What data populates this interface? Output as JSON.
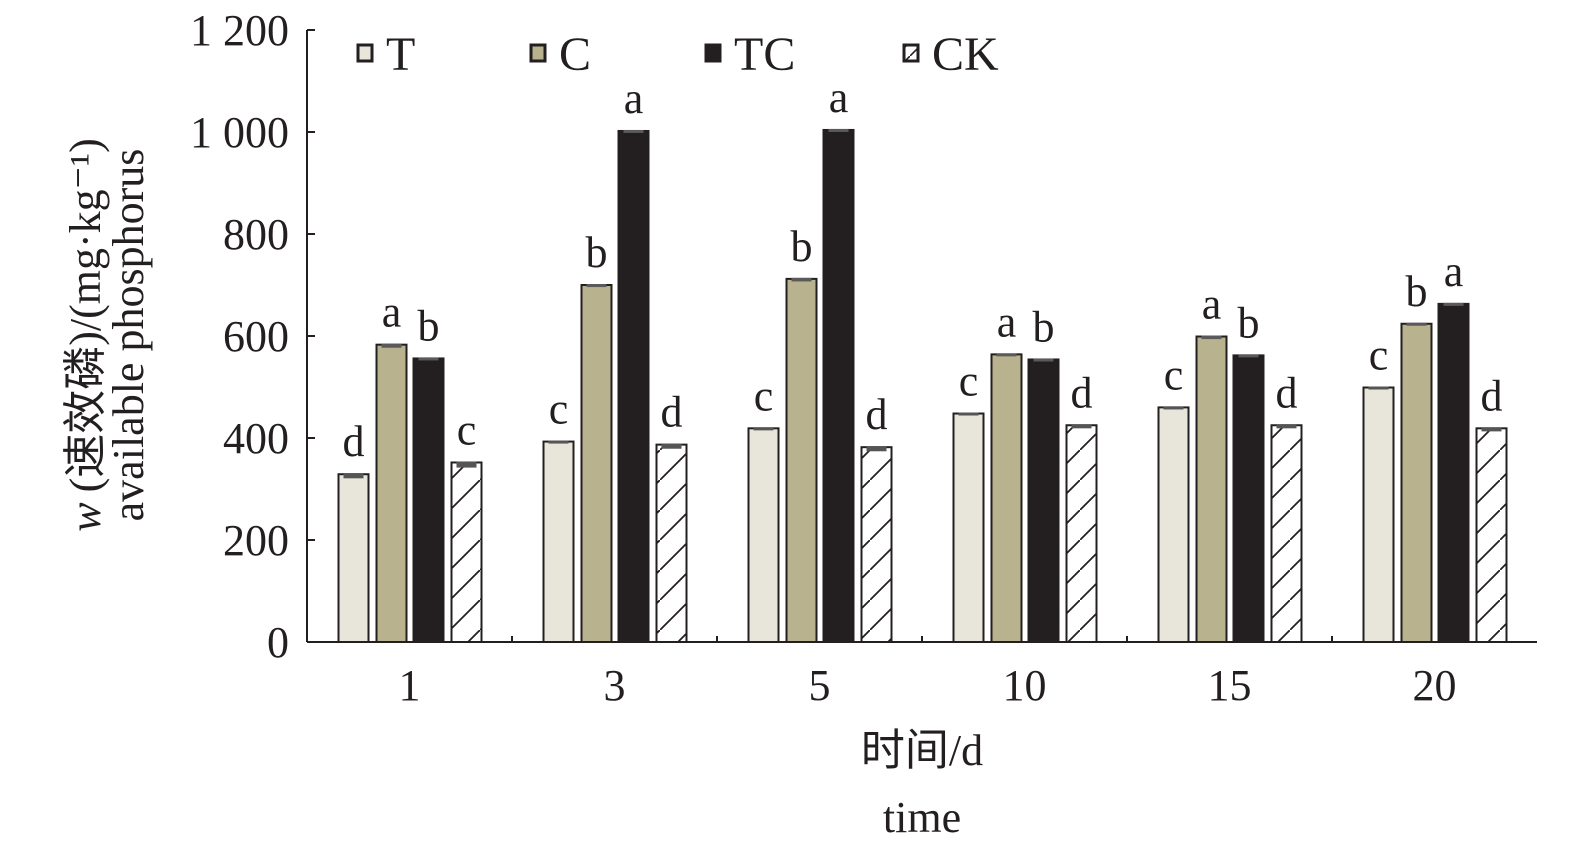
{
  "chart_data": {
    "type": "bar",
    "title": "",
    "xlabel": "时间/d",
    "xlabel_en": "time",
    "ylabel_prefix": "w",
    "ylabel": "(速效磷)/(mg·kg⁻¹)",
    "ylabel_en": "available phosphorus",
    "ylim": [
      0,
      1200
    ],
    "yticks": [
      0,
      200,
      400,
      600,
      800,
      1000,
      1200
    ],
    "ytick_labels": [
      "0",
      "200",
      "400",
      "600",
      "800",
      "1 000",
      "1 200"
    ],
    "categories": [
      "1",
      "3",
      "5",
      "10",
      "15",
      "20"
    ],
    "legend_position": "top",
    "series": [
      {
        "name": "T",
        "color": "#e8e6da",
        "pattern": "solid",
        "values": [
          329,
          393,
          419,
          448,
          460,
          499
        ],
        "errors": [
          10,
          5,
          6,
          5,
          6,
          5
        ],
        "letters": [
          "d",
          "c",
          "c",
          "c",
          "c",
          "c"
        ]
      },
      {
        "name": "C",
        "color": "#b8b28e",
        "pattern": "solid",
        "values": [
          583,
          700,
          712,
          564,
          599,
          624
        ],
        "errors": [
          8,
          6,
          7,
          4,
          7,
          5
        ],
        "letters": [
          "a",
          "b",
          "b",
          "a",
          "a",
          "b"
        ]
      },
      {
        "name": "TC",
        "color": "#231f20",
        "pattern": "solid",
        "values": [
          556,
          1002,
          1004,
          554,
          562,
          663
        ],
        "errors": [
          5,
          4,
          4,
          6,
          5,
          4
        ],
        "letters": [
          "b",
          "a",
          "a",
          "b",
          "b",
          "a"
        ]
      },
      {
        "name": "CK",
        "color": "#ffffff",
        "pattern": "hatch",
        "values": [
          352,
          387,
          382,
          425,
          425,
          419
        ],
        "errors": [
          12,
          10,
          10,
          8,
          8,
          8
        ],
        "letters": [
          "c",
          "d",
          "d",
          "d",
          "d",
          "d"
        ]
      }
    ]
  }
}
